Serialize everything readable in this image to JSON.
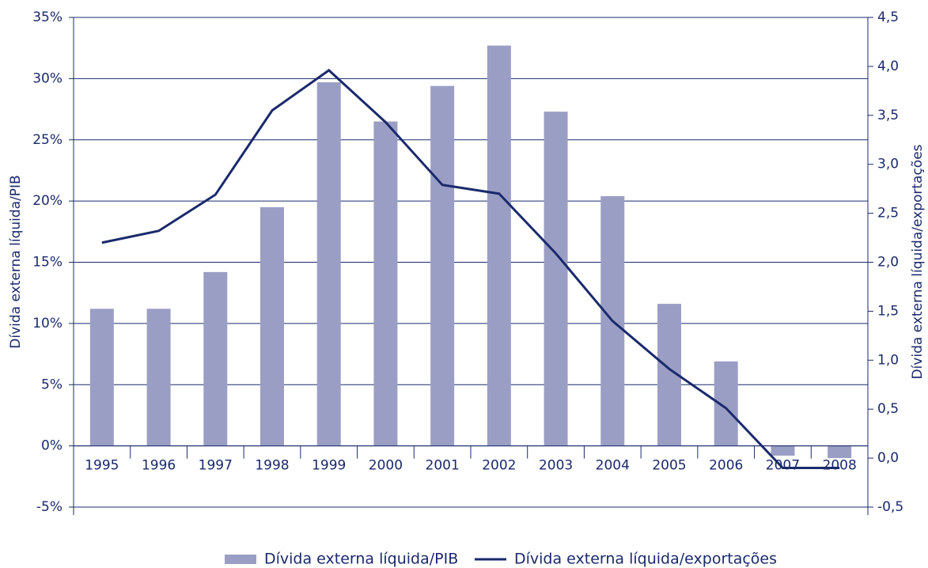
{
  "chart_data": {
    "type": "bar_line",
    "y_label": "Dívida externa líquida/PIB",
    "y2_label": "Dívida externa líquida/exportações",
    "categories": [
      "1995",
      "1996",
      "1997",
      "1998",
      "1999",
      "2000",
      "2001",
      "2002",
      "2003",
      "2004",
      "2005",
      "2006",
      "2007",
      "2008"
    ],
    "series": [
      {
        "name": "Dívida externa líquida/PIB",
        "type": "bar",
        "color": "#9b9ec4",
        "values": [
          11.2,
          11.2,
          14.2,
          19.5,
          29.7,
          26.5,
          29.4,
          32.7,
          27.3,
          20.4,
          11.6,
          6.9,
          -0.8,
          -1.0
        ]
      },
      {
        "name": "Dívida externa líquida/exportações",
        "type": "line",
        "axis": "y2",
        "color": "#1a2a6c",
        "values": [
          2.2,
          2.32,
          2.69,
          3.55,
          3.96,
          3.43,
          2.79,
          2.7,
          2.09,
          1.4,
          0.91,
          0.51,
          -0.1,
          -0.1
        ]
      }
    ],
    "ylim": [
      -5,
      35
    ],
    "yticks": [
      {
        "value": -5,
        "label": "-5%"
      },
      {
        "value": 0,
        "label": "0%"
      },
      {
        "value": 5,
        "label": "5%"
      },
      {
        "value": 10,
        "label": "10%"
      },
      {
        "value": 15,
        "label": "15%"
      },
      {
        "value": 20,
        "label": "20%"
      },
      {
        "value": 25,
        "label": "25%"
      },
      {
        "value": 30,
        "label": "30%"
      },
      {
        "value": 35,
        "label": "35%"
      }
    ],
    "y2lim": [
      -0.5,
      4.5
    ],
    "y2ticks": [
      {
        "value": -0.5,
        "label": "-0,5"
      },
      {
        "value": 0,
        "label": "0,0"
      },
      {
        "value": 0.5,
        "label": "0,5"
      },
      {
        "value": 1,
        "label": "1,0"
      },
      {
        "value": 1.5,
        "label": "1,5"
      },
      {
        "value": 2,
        "label": "2,0"
      },
      {
        "value": 2.5,
        "label": "2,5"
      },
      {
        "value": 3,
        "label": "3,0"
      },
      {
        "value": 3.5,
        "label": "3,5"
      },
      {
        "value": 4,
        "label": "4,0"
      },
      {
        "value": 4.5,
        "label": "4,5"
      }
    ],
    "grid": true,
    "legend": "bottom"
  }
}
